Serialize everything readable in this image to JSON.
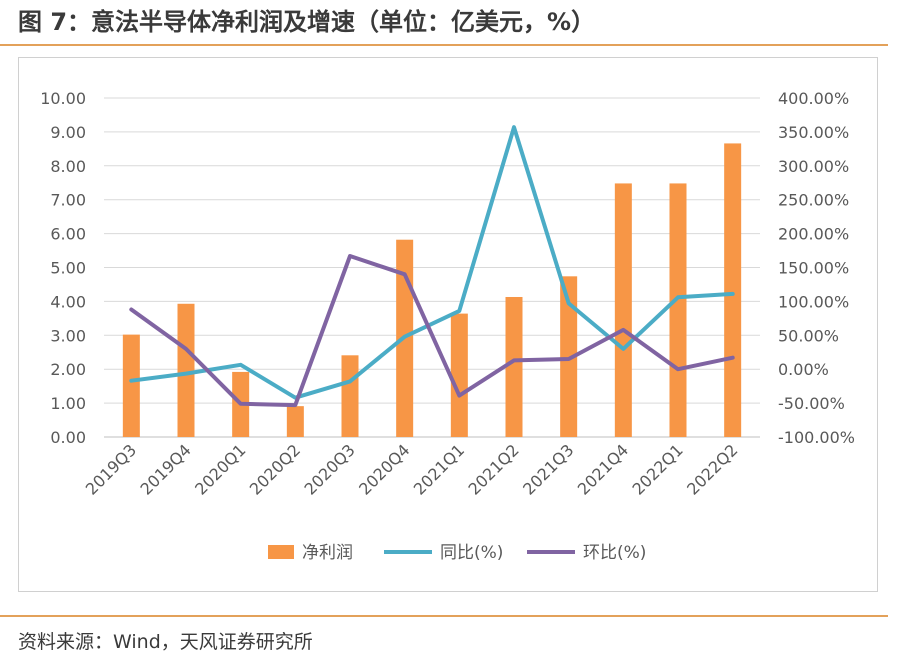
{
  "title": "图 7：意法半导体净利润及增速（单位：亿美元，%）",
  "source": "资料来源：Wind，天风证券研究所",
  "colors": {
    "bar": "#f79646",
    "yoy_line": "#4bacc6",
    "qoq_line": "#8064a2",
    "rule": "#e3a15a",
    "gridline": "#d9d9d9",
    "tick_text": "#595959"
  },
  "chart_data": {
    "type": "bar",
    "categories": [
      "2019Q3",
      "2019Q4",
      "2020Q1",
      "2020Q2",
      "2020Q3",
      "2020Q4",
      "2021Q1",
      "2021Q2",
      "2021Q3",
      "2021Q4",
      "2022Q1",
      "2022Q2"
    ],
    "series": [
      {
        "name": "净利润",
        "type": "bar",
        "axis": "left",
        "values": [
          3.02,
          3.93,
          1.92,
          0.91,
          2.41,
          5.82,
          3.64,
          4.13,
          4.74,
          7.48,
          7.48,
          8.66
        ]
      },
      {
        "name": "同比(%)",
        "type": "line",
        "axis": "right",
        "values": [
          -17.0,
          -6.5,
          6.5,
          -42.0,
          -18.0,
          48.0,
          86.0,
          357.0,
          97.0,
          30.0,
          106.0,
          111.0
        ]
      },
      {
        "name": "环比(%)",
        "type": "line",
        "axis": "right",
        "values": [
          88.0,
          30.0,
          -51.0,
          -53.0,
          167.0,
          140.0,
          -39.0,
          13.0,
          15.0,
          58.0,
          0.0,
          17.0
        ]
      }
    ],
    "y_left": {
      "ticks": [
        "0.00",
        "1.00",
        "2.00",
        "3.00",
        "4.00",
        "5.00",
        "6.00",
        "7.00",
        "8.00",
        "9.00",
        "10.00"
      ],
      "range": [
        0,
        10
      ]
    },
    "y_right": {
      "ticks": [
        "-100.00%",
        "-50.00%",
        "0.00%",
        "50.00%",
        "100.00%",
        "150.00%",
        "200.00%",
        "250.00%",
        "300.00%",
        "350.00%",
        "400.00%"
      ],
      "range": [
        -100,
        400
      ]
    },
    "grid": true,
    "legend_position": "bottom"
  }
}
